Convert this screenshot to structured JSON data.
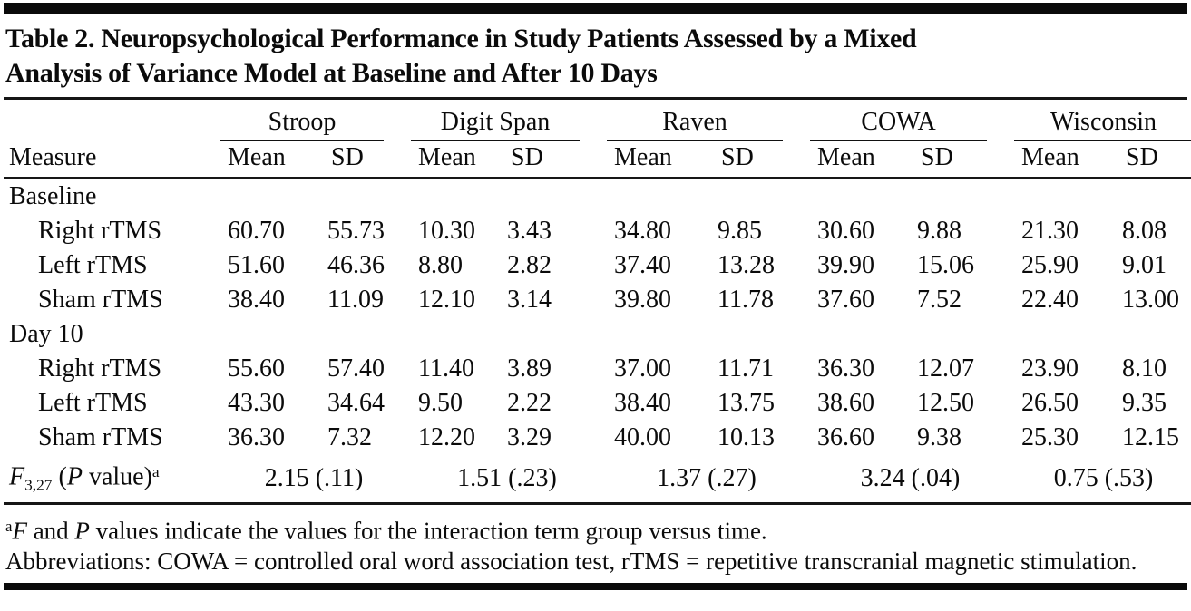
{
  "title": {
    "line1": "Table 2. Neuropsychological Performance in Study Patients Assessed by a Mixed",
    "line2": "Analysis of Variance Model at Baseline and After 10 Days"
  },
  "table": {
    "measure_header": "Measure",
    "groups": [
      "Stroop",
      "Digit Span",
      "Raven",
      "COWA",
      "Wisconsin"
    ],
    "sub": [
      "Mean",
      "SD"
    ],
    "rows": [
      {
        "label": "Baseline"
      },
      {
        "measure": "Right rTMS",
        "v": [
          "60.70",
          "55.73",
          "10.30",
          "3.43",
          "34.80",
          "9.85",
          "30.60",
          "9.88",
          "21.30",
          "8.08"
        ]
      },
      {
        "measure": "Left rTMS",
        "v": [
          "51.60",
          "46.36",
          "8.80",
          "2.82",
          "37.40",
          "13.28",
          "39.90",
          "15.06",
          "25.90",
          "9.01"
        ]
      },
      {
        "measure": "Sham rTMS",
        "v": [
          "38.40",
          "11.09",
          "12.10",
          "3.14",
          "39.80",
          "11.78",
          "37.60",
          "7.52",
          "22.40",
          "13.00"
        ]
      },
      {
        "label": "Day 10"
      },
      {
        "measure": "Right rTMS",
        "v": [
          "55.60",
          "57.40",
          "11.40",
          "3.89",
          "37.00",
          "11.71",
          "36.30",
          "12.07",
          "23.90",
          "8.10"
        ]
      },
      {
        "measure": "Left rTMS",
        "v": [
          "43.30",
          "34.64",
          "9.50",
          "2.22",
          "38.40",
          "13.75",
          "38.60",
          "12.50",
          "26.50",
          "9.35"
        ]
      },
      {
        "measure": "Sham rTMS",
        "v": [
          "36.30",
          "7.32",
          "12.20",
          "3.29",
          "40.00",
          "10.13",
          "36.60",
          "9.38",
          "25.30",
          "12.15"
        ]
      }
    ],
    "f_row": {
      "f": "F",
      "df": "3,27",
      "pre": " (",
      "p": "P",
      "post": " value)",
      "sup": "a",
      "values": [
        "2.15 (.11)",
        "1.51 (.23)",
        "1.37 (.27)",
        "3.24 (.04)",
        "0.75 (.53)"
      ]
    }
  },
  "footnotes": {
    "a_sup": "a",
    "a_f": "F",
    "a_and": " and ",
    "a_p": "P",
    "a_rest": " values indicate the values for the interaction term group versus time.",
    "abbreviations": "Abbreviations: COWA = controlled oral word association test, rTMS = repetitive transcranial magnetic stimulation."
  },
  "colors": {
    "rule": "#0a0a0a",
    "text": "#0b0b0b",
    "background": "#ffffff"
  }
}
